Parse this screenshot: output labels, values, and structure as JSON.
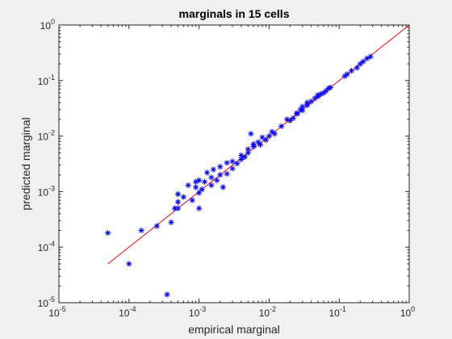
{
  "chart_data": {
    "type": "scatter",
    "title": "marginals in 15 cells",
    "xlabel": "empirical marginal",
    "ylabel": "predicted marginal",
    "xscale": "log",
    "yscale": "log",
    "xlim": [
      1e-05,
      1
    ],
    "ylim": [
      1e-05,
      1
    ],
    "grid": false,
    "legend": "none",
    "x_ticks": [
      {
        "value": 1e-05,
        "base": "10",
        "exp": "-5"
      },
      {
        "value": 0.0001,
        "base": "10",
        "exp": "-4"
      },
      {
        "value": 0.001,
        "base": "10",
        "exp": "-3"
      },
      {
        "value": 0.01,
        "base": "10",
        "exp": "-2"
      },
      {
        "value": 0.1,
        "base": "10",
        "exp": "-1"
      },
      {
        "value": 1,
        "base": "10",
        "exp": "0"
      }
    ],
    "y_ticks": [
      {
        "value": 1e-05,
        "base": "10",
        "exp": "-5"
      },
      {
        "value": 0.0001,
        "base": "10",
        "exp": "-4"
      },
      {
        "value": 0.001,
        "base": "10",
        "exp": "-3"
      },
      {
        "value": 0.01,
        "base": "10",
        "exp": "-2"
      },
      {
        "value": 0.1,
        "base": "10",
        "exp": "-1"
      },
      {
        "value": 1,
        "base": "10",
        "exp": "0"
      }
    ],
    "series": [
      {
        "marker": "asterisk",
        "color": "#0000ff",
        "points": [
          [
            5e-05,
            0.00018
          ],
          [
            0.0001,
            5e-05
          ],
          [
            0.00015,
            0.0002
          ],
          [
            0.00025,
            0.00024
          ],
          [
            0.00035,
            1.4e-05
          ],
          [
            0.0004,
            0.00028
          ],
          [
            0.00045,
            0.0005
          ],
          [
            0.0005,
            0.00065
          ],
          [
            0.0005,
            0.0005
          ],
          [
            0.0005,
            0.0009
          ],
          [
            0.0006,
            0.0008
          ],
          [
            0.0007,
            0.0013
          ],
          [
            0.0008,
            0.0007
          ],
          [
            0.0009,
            0.0012
          ],
          [
            0.0009,
            0.0015
          ],
          [
            0.001,
            0.00095
          ],
          [
            0.001,
            0.0016
          ],
          [
            0.001,
            0.0005
          ],
          [
            0.0011,
            0.0011
          ],
          [
            0.0012,
            0.0015
          ],
          [
            0.0013,
            0.0022
          ],
          [
            0.0015,
            0.0018
          ],
          [
            0.0015,
            0.0013
          ],
          [
            0.0016,
            0.0025
          ],
          [
            0.0018,
            0.0016
          ],
          [
            0.002,
            0.002
          ],
          [
            0.002,
            0.0028
          ],
          [
            0.0022,
            0.0012
          ],
          [
            0.0025,
            0.0033
          ],
          [
            0.0025,
            0.0021
          ],
          [
            0.003,
            0.0035
          ],
          [
            0.003,
            0.0026
          ],
          [
            0.0035,
            0.0032
          ],
          [
            0.004,
            0.0038
          ],
          [
            0.004,
            0.0045
          ],
          [
            0.0045,
            0.0042
          ],
          [
            0.005,
            0.005
          ],
          [
            0.005,
            0.0058
          ],
          [
            0.0055,
            0.011
          ],
          [
            0.006,
            0.0065
          ],
          [
            0.006,
            0.0072
          ],
          [
            0.007,
            0.0078
          ],
          [
            0.0075,
            0.007
          ],
          [
            0.008,
            0.0095
          ],
          [
            0.009,
            0.0085
          ],
          [
            0.01,
            0.01
          ],
          [
            0.011,
            0.012
          ],
          [
            0.012,
            0.011
          ],
          [
            0.015,
            0.015
          ],
          [
            0.018,
            0.02
          ],
          [
            0.02,
            0.019
          ],
          [
            0.022,
            0.021
          ],
          [
            0.025,
            0.026
          ],
          [
            0.025,
            0.025
          ],
          [
            0.028,
            0.03
          ],
          [
            0.03,
            0.029
          ],
          [
            0.03,
            0.034
          ],
          [
            0.035,
            0.036
          ],
          [
            0.035,
            0.04
          ],
          [
            0.04,
            0.042
          ],
          [
            0.045,
            0.048
          ],
          [
            0.05,
            0.055
          ],
          [
            0.05,
            0.052
          ],
          [
            0.055,
            0.057
          ],
          [
            0.06,
            0.06
          ],
          [
            0.065,
            0.065
          ],
          [
            0.07,
            0.072
          ],
          [
            0.075,
            0.075
          ],
          [
            0.12,
            0.12
          ],
          [
            0.13,
            0.13
          ],
          [
            0.15,
            0.15
          ],
          [
            0.18,
            0.17
          ],
          [
            0.2,
            0.2
          ],
          [
            0.22,
            0.22
          ],
          [
            0.25,
            0.25
          ],
          [
            0.28,
            0.27
          ]
        ]
      },
      {
        "line": "identity",
        "color": "#ff0000",
        "points": [
          [
            5e-05,
            5e-05
          ],
          [
            1,
            1
          ]
        ]
      }
    ]
  }
}
